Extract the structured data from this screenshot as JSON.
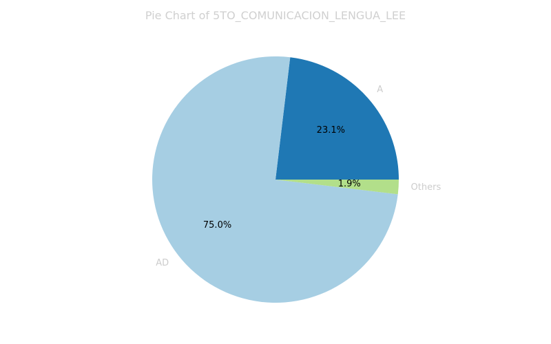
{
  "chart_data": {
    "type": "pie",
    "title": "Pie Chart of 5TO_COMUNICACION_LENGUA_LEE",
    "slices": [
      {
        "label": "A",
        "value": 23.1,
        "pct_label": "23.1%",
        "color": "#1f78b4"
      },
      {
        "label": "AD",
        "value": 75.0,
        "pct_label": "75.0%",
        "color": "#a6cee3"
      },
      {
        "label": "Others",
        "value": 1.9,
        "pct_label": "1.9%",
        "color": "#b2df8a"
      }
    ],
    "start_angle_deg": 0,
    "direction": "counterclockwise",
    "legend": "none"
  }
}
